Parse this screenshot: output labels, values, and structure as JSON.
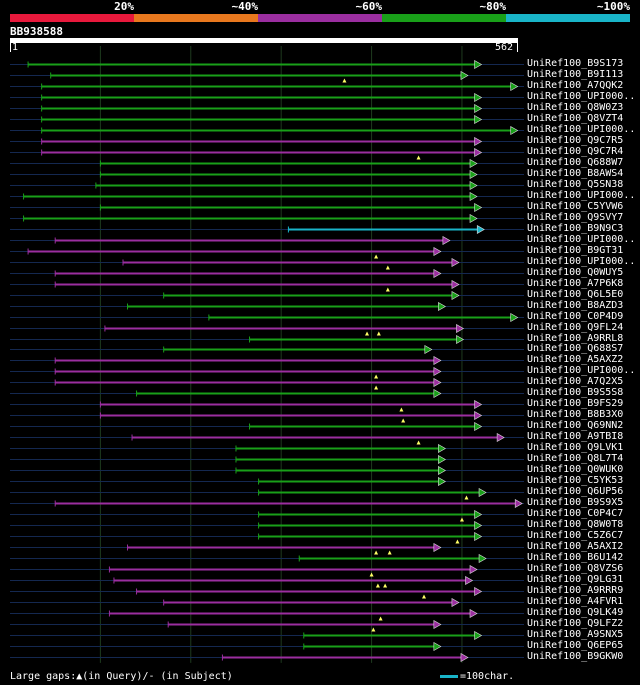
{
  "header": {
    "identity_scale": [
      "20%",
      "~40%",
      "~60%",
      "~80%",
      "~100%"
    ],
    "colors": [
      "#e8193c",
      "#e8781e",
      "#9b2ea0",
      "#19a019",
      "#19b4c8"
    ]
  },
  "query": {
    "name": "BB938588",
    "start_label": "1",
    "end_label": "562",
    "length": 562
  },
  "footer": {
    "gaps_text": "Large gaps:▲(in Query)/- (in Subject)",
    "scale_text": "=100char."
  },
  "hits": [
    {
      "label": "UniRef100_B9S173",
      "start": 20,
      "end": 515,
      "color": "#19a019",
      "gaps": []
    },
    {
      "label": "UniRef100_B9I113",
      "start": 45,
      "end": 500,
      "color": "#19a019",
      "gaps": [
        370
      ]
    },
    {
      "label": "UniRef100_A7QQK2",
      "start": 35,
      "end": 555,
      "color": "#19a019",
      "gaps": []
    },
    {
      "label": "UniRef100_UPI000..",
      "start": 35,
      "end": 515,
      "color": "#19a019",
      "gaps": []
    },
    {
      "label": "UniRef100_Q8W0Z3",
      "start": 35,
      "end": 515,
      "color": "#19a019",
      "gaps": []
    },
    {
      "label": "UniRef100_Q8VZT4",
      "start": 35,
      "end": 515,
      "color": "#19a019",
      "gaps": []
    },
    {
      "label": "UniRef100_UPI000..",
      "start": 35,
      "end": 555,
      "color": "#19a019",
      "gaps": []
    },
    {
      "label": "UniRef100_Q9C7R5",
      "start": 35,
      "end": 515,
      "color": "#9b2ea0",
      "gaps": []
    },
    {
      "label": "UniRef100_Q9C7R4",
      "start": 35,
      "end": 515,
      "color": "#9b2ea0",
      "gaps": [
        452
      ]
    },
    {
      "label": "UniRef100_Q688W7",
      "start": 100,
      "end": 510,
      "color": "#19a019",
      "gaps": []
    },
    {
      "label": "UniRef100_B8AWS4",
      "start": 100,
      "end": 510,
      "color": "#19a019",
      "gaps": []
    },
    {
      "label": "UniRef100_Q5SN38",
      "start": 95,
      "end": 510,
      "color": "#19a019",
      "gaps": []
    },
    {
      "label": "UniRef100_UPI000..",
      "start": 15,
      "end": 510,
      "color": "#19a019",
      "gaps": []
    },
    {
      "label": "UniRef100_C5YVW6",
      "start": 100,
      "end": 515,
      "color": "#19a019",
      "gaps": []
    },
    {
      "label": "UniRef100_Q9SVY7",
      "start": 15,
      "end": 510,
      "color": "#19a019",
      "gaps": []
    },
    {
      "label": "UniRef100_B9N9C3",
      "start": 308,
      "end": 518,
      "color": "#19b4c8",
      "gaps": []
    },
    {
      "label": "UniRef100_UPI000..",
      "start": 50,
      "end": 480,
      "color": "#9b2ea0",
      "gaps": []
    },
    {
      "label": "UniRef100_B9GT31",
      "start": 20,
      "end": 470,
      "color": "#9b2ea0",
      "gaps": [
        405
      ]
    },
    {
      "label": "UniRef100_UPI000..",
      "start": 125,
      "end": 490,
      "color": "#9b2ea0",
      "gaps": [
        418
      ]
    },
    {
      "label": "UniRef100_Q0WUY5",
      "start": 50,
      "end": 470,
      "color": "#9b2ea0",
      "gaps": []
    },
    {
      "label": "UniRef100_A7P6K8",
      "start": 50,
      "end": 490,
      "color": "#9b2ea0",
      "gaps": [
        418
      ]
    },
    {
      "label": "UniRef100_Q6L5E0",
      "start": 170,
      "end": 490,
      "color": "#19a019",
      "gaps": []
    },
    {
      "label": "UniRef100_B8AZD3",
      "start": 130,
      "end": 475,
      "color": "#19a019",
      "gaps": []
    },
    {
      "label": "UniRef100_C0P4D9",
      "start": 220,
      "end": 555,
      "color": "#19a019",
      "gaps": []
    },
    {
      "label": "UniRef100_Q9FL24",
      "start": 105,
      "end": 495,
      "color": "#9b2ea0",
      "gaps": [
        395,
        408
      ]
    },
    {
      "label": "UniRef100_A9RRL8",
      "start": 265,
      "end": 495,
      "color": "#19a019",
      "gaps": []
    },
    {
      "label": "UniRef100_Q688S7",
      "start": 170,
      "end": 460,
      "color": "#19a019",
      "gaps": []
    },
    {
      "label": "UniRef100_A5AXZ2",
      "start": 50,
      "end": 470,
      "color": "#9b2ea0",
      "gaps": []
    },
    {
      "label": "UniRef100_UPI000..",
      "start": 50,
      "end": 470,
      "color": "#9b2ea0",
      "gaps": [
        405
      ]
    },
    {
      "label": "UniRef100_A7Q2X5",
      "start": 50,
      "end": 470,
      "color": "#9b2ea0",
      "gaps": [
        405
      ]
    },
    {
      "label": "UniRef100_B9S5S8",
      "start": 140,
      "end": 470,
      "color": "#19a019",
      "gaps": []
    },
    {
      "label": "UniRef100_B9FS29",
      "start": 100,
      "end": 515,
      "color": "#9b2ea0",
      "gaps": [
        433
      ]
    },
    {
      "label": "UniRef100_B8B3X0",
      "start": 100,
      "end": 515,
      "color": "#9b2ea0",
      "gaps": [
        435
      ]
    },
    {
      "label": "UniRef100_Q69NN2",
      "start": 265,
      "end": 515,
      "color": "#19a019",
      "gaps": []
    },
    {
      "label": "UniRef100_A9TBI8",
      "start": 135,
      "end": 540,
      "color": "#9b2ea0",
      "gaps": [
        452
      ]
    },
    {
      "label": "UniRef100_Q9LVK1",
      "start": 250,
      "end": 475,
      "color": "#19a019",
      "gaps": []
    },
    {
      "label": "UniRef100_Q8L7T4",
      "start": 250,
      "end": 475,
      "color": "#19a019",
      "gaps": []
    },
    {
      "label": "UniRef100_Q0WUK0",
      "start": 250,
      "end": 475,
      "color": "#19a019",
      "gaps": []
    },
    {
      "label": "UniRef100_C5YK53",
      "start": 275,
      "end": 475,
      "color": "#19a019",
      "gaps": []
    },
    {
      "label": "UniRef100_Q6UP56",
      "start": 275,
      "end": 520,
      "color": "#19a019",
      "gaps": [
        505
      ]
    },
    {
      "label": "UniRef100_B9S9X5",
      "start": 50,
      "end": 560,
      "color": "#9b2ea0",
      "gaps": []
    },
    {
      "label": "UniRef100_C0P4C7",
      "start": 275,
      "end": 515,
      "color": "#19a019",
      "gaps": [
        500
      ]
    },
    {
      "label": "UniRef100_Q8W0T8",
      "start": 275,
      "end": 515,
      "color": "#19a019",
      "gaps": []
    },
    {
      "label": "UniRef100_C5Z6C7",
      "start": 275,
      "end": 515,
      "color": "#19a019",
      "gaps": [
        495
      ]
    },
    {
      "label": "UniRef100_A5AXI2",
      "start": 130,
      "end": 470,
      "color": "#9b2ea0",
      "gaps": [
        405,
        420
      ]
    },
    {
      "label": "UniRef100_B6U142",
      "start": 320,
      "end": 520,
      "color": "#19a019",
      "gaps": []
    },
    {
      "label": "UniRef100_Q8VZS6",
      "start": 110,
      "end": 510,
      "color": "#9b2ea0",
      "gaps": [
        400
      ]
    },
    {
      "label": "UniRef100_Q9LG31",
      "start": 115,
      "end": 505,
      "color": "#9b2ea0",
      "gaps": [
        407,
        415
      ]
    },
    {
      "label": "UniRef100_A9RRR9",
      "start": 140,
      "end": 515,
      "color": "#9b2ea0",
      "gaps": [
        458
      ]
    },
    {
      "label": "UniRef100_A4FVR1",
      "start": 170,
      "end": 490,
      "color": "#9b2ea0",
      "gaps": []
    },
    {
      "label": "UniRef100_Q9LK49",
      "start": 110,
      "end": 510,
      "color": "#9b2ea0",
      "gaps": [
        410
      ]
    },
    {
      "label": "UniRef100_Q9LFZ2",
      "start": 175,
      "end": 470,
      "color": "#9b2ea0",
      "gaps": [
        402
      ]
    },
    {
      "label": "UniRef100_A9SNX5",
      "start": 325,
      "end": 515,
      "color": "#19a019",
      "gaps": []
    },
    {
      "label": "UniRef100_Q6EP65",
      "start": 325,
      "end": 470,
      "color": "#19a019",
      "gaps": []
    },
    {
      "label": "UniRef100_B9GKW0",
      "start": 235,
      "end": 500,
      "color": "#9b2ea0",
      "gaps": []
    }
  ]
}
